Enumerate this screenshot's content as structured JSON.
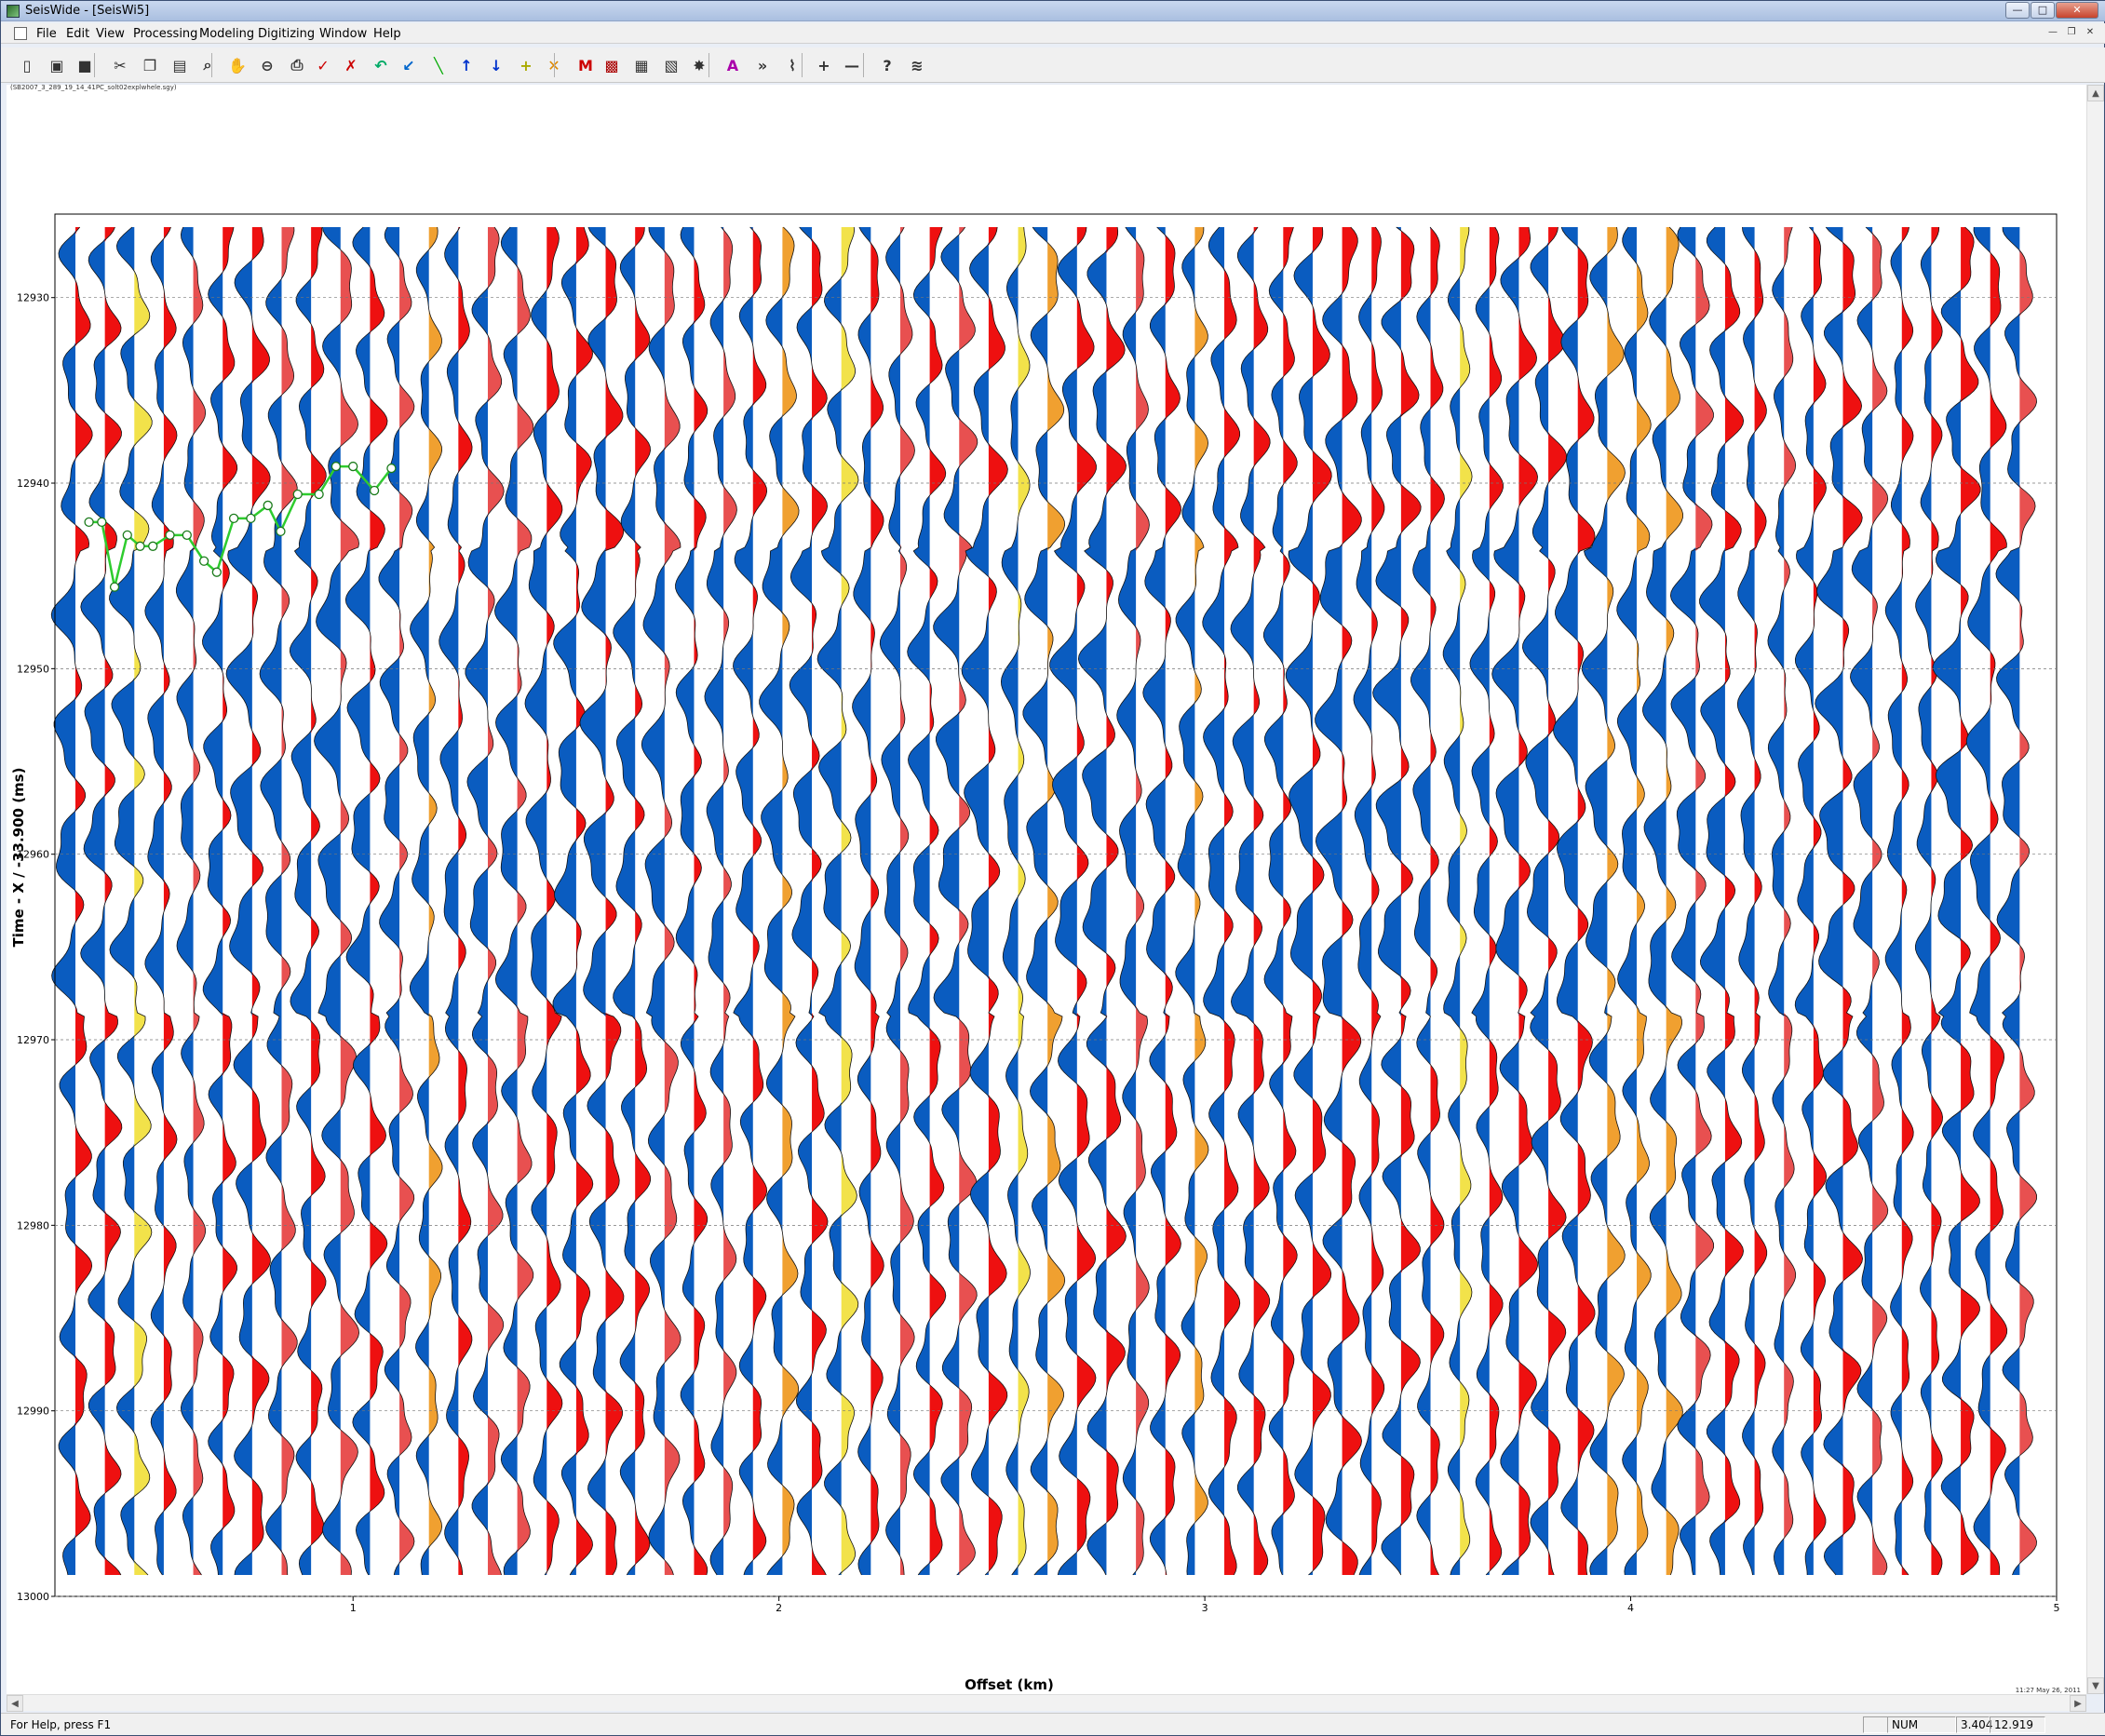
{
  "titlebar": {
    "title": "SeisWide - [SeisWi5]"
  },
  "menubar": {
    "items": [
      "File",
      "Edit",
      "View",
      "Processing",
      "Modeling",
      "Digitizing",
      "Window",
      "Help"
    ]
  },
  "toolbar": {
    "icons": [
      "new-icon",
      "open-icon",
      "save-icon",
      "cut-icon",
      "copy-icon",
      "paste-icon",
      "zoom-icon",
      "pan-icon",
      "zoom-out-icon",
      "print-icon",
      "pick-check-icon",
      "pick-delete-icon",
      "undo-icon",
      "pick-icon",
      "line-icon",
      "arrow-up-icon",
      "arrow-down-icon",
      "add-pick-icon",
      "remove-pick-icon",
      "m-icon",
      "color-icon",
      "display-icon",
      "raytrace-icon",
      "model-icon",
      "font-icon",
      "forward-icon",
      "wiggle-icon",
      "plus-icon",
      "minus-icon",
      "help-icon",
      "wave-icon"
    ]
  },
  "document": {
    "filename": "(SB2007_3_289_19_14_41PC_solt02explwhele.sgy)"
  },
  "plot": {
    "ylabel": "Time - X / -33.900 (ms)",
    "xlabel": "Offset (km)",
    "timestamp": "11:27 May 26, 2011",
    "yticks": [
      "12930",
      "12940",
      "12950",
      "12960",
      "12970",
      "12980",
      "12990",
      "13000"
    ],
    "xticks": [
      "1",
      "2",
      "3",
      "4",
      "5"
    ]
  },
  "chart_data": {
    "type": "scatter",
    "title": "",
    "xlabel": "Offset (km)",
    "ylabel": "Time - X / -33.900 (ms)",
    "xlim": [
      0.3,
      5.0
    ],
    "ylim": [
      13000,
      12925.5
    ],
    "display": "seismic wiggle traces, variable-area fill (blue negative, red positive)",
    "picks": {
      "name": "",
      "x": [
        0.38,
        0.41,
        0.44,
        0.47,
        0.5,
        0.53,
        0.57,
        0.61,
        0.65,
        0.68,
        0.72,
        0.76,
        0.8,
        0.83,
        0.87,
        0.92,
        0.96,
        1.0,
        1.05,
        1.09
      ],
      "y": [
        12942.1,
        12942.1,
        12945.6,
        12942.8,
        12943.4,
        12943.4,
        12942.8,
        12942.8,
        12944.2,
        12944.8,
        12941.9,
        12941.9,
        12941.2,
        12942.6,
        12940.6,
        12940.6,
        12939.1,
        12939.1,
        12940.4,
        12939.2
      ]
    }
  },
  "statusbar": {
    "help": "For Help, press F1",
    "num": "NUM",
    "coord_x": "3.404",
    "coord_y": "12.919"
  }
}
